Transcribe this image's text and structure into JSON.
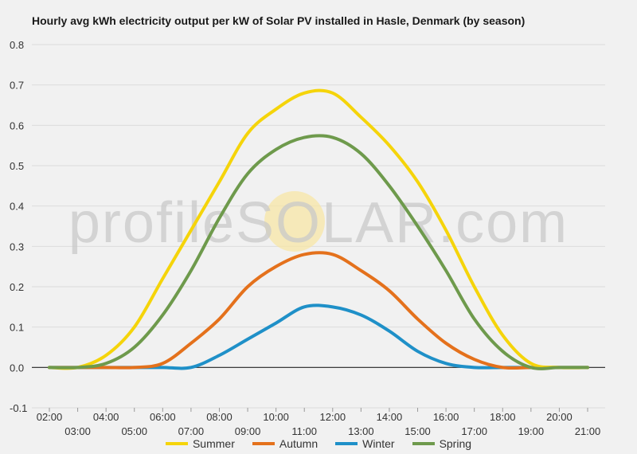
{
  "chart_data": {
    "type": "line",
    "title": "Hourly avg kWh electricity output per kW of Solar PV installed in Hasle, Denmark (by season)",
    "xlabel": "",
    "ylabel": "",
    "ylim": [
      -0.1,
      0.8
    ],
    "yticks": [
      "0.8",
      "0.7",
      "0.6",
      "0.5",
      "0.4",
      "0.3",
      "0.2",
      "0.1",
      "0.0",
      "-0.1"
    ],
    "ytick_values": [
      0.8,
      0.7,
      0.6,
      0.5,
      0.4,
      0.3,
      0.2,
      0.1,
      0.0,
      -0.1
    ],
    "xticks": [
      "02:00",
      "03:00",
      "04:00",
      "05:00",
      "06:00",
      "07:00",
      "08:00",
      "09:00",
      "10:00",
      "11:00",
      "12:00",
      "13:00",
      "14:00",
      "15:00",
      "16:00",
      "17:00",
      "18:00",
      "19:00",
      "20:00",
      "21:00"
    ],
    "x": [
      2,
      3,
      4,
      5,
      6,
      7,
      8,
      9,
      10,
      11,
      12,
      13,
      14,
      15,
      16,
      17,
      18,
      19,
      20,
      21
    ],
    "grid": true,
    "legend_position": "bottom",
    "watermark": "profileSOLAR.com",
    "series": [
      {
        "name": "Summer",
        "color": "#f5d40a",
        "values": [
          0.0,
          0.0,
          0.03,
          0.1,
          0.22,
          0.34,
          0.46,
          0.58,
          0.64,
          0.68,
          0.68,
          0.62,
          0.55,
          0.46,
          0.34,
          0.2,
          0.08,
          0.01,
          0.0,
          0.0
        ]
      },
      {
        "name": "Autumn",
        "color": "#e4711c",
        "values": [
          0.0,
          0.0,
          0.0,
          0.0,
          0.01,
          0.06,
          0.12,
          0.2,
          0.25,
          0.28,
          0.28,
          0.24,
          0.19,
          0.12,
          0.06,
          0.02,
          0.0,
          0.0,
          0.0,
          0.0
        ]
      },
      {
        "name": "Winter",
        "color": "#1f90c8",
        "values": [
          0.0,
          0.0,
          0.0,
          0.0,
          0.0,
          0.0,
          0.03,
          0.07,
          0.11,
          0.15,
          0.15,
          0.13,
          0.09,
          0.04,
          0.01,
          0.0,
          0.0,
          0.0,
          0.0,
          0.0
        ]
      },
      {
        "name": "Spring",
        "color": "#6e9a4c",
        "values": [
          0.0,
          0.0,
          0.01,
          0.05,
          0.13,
          0.24,
          0.37,
          0.48,
          0.54,
          0.57,
          0.57,
          0.53,
          0.45,
          0.35,
          0.24,
          0.12,
          0.04,
          0.0,
          0.0,
          0.0
        ]
      }
    ]
  }
}
